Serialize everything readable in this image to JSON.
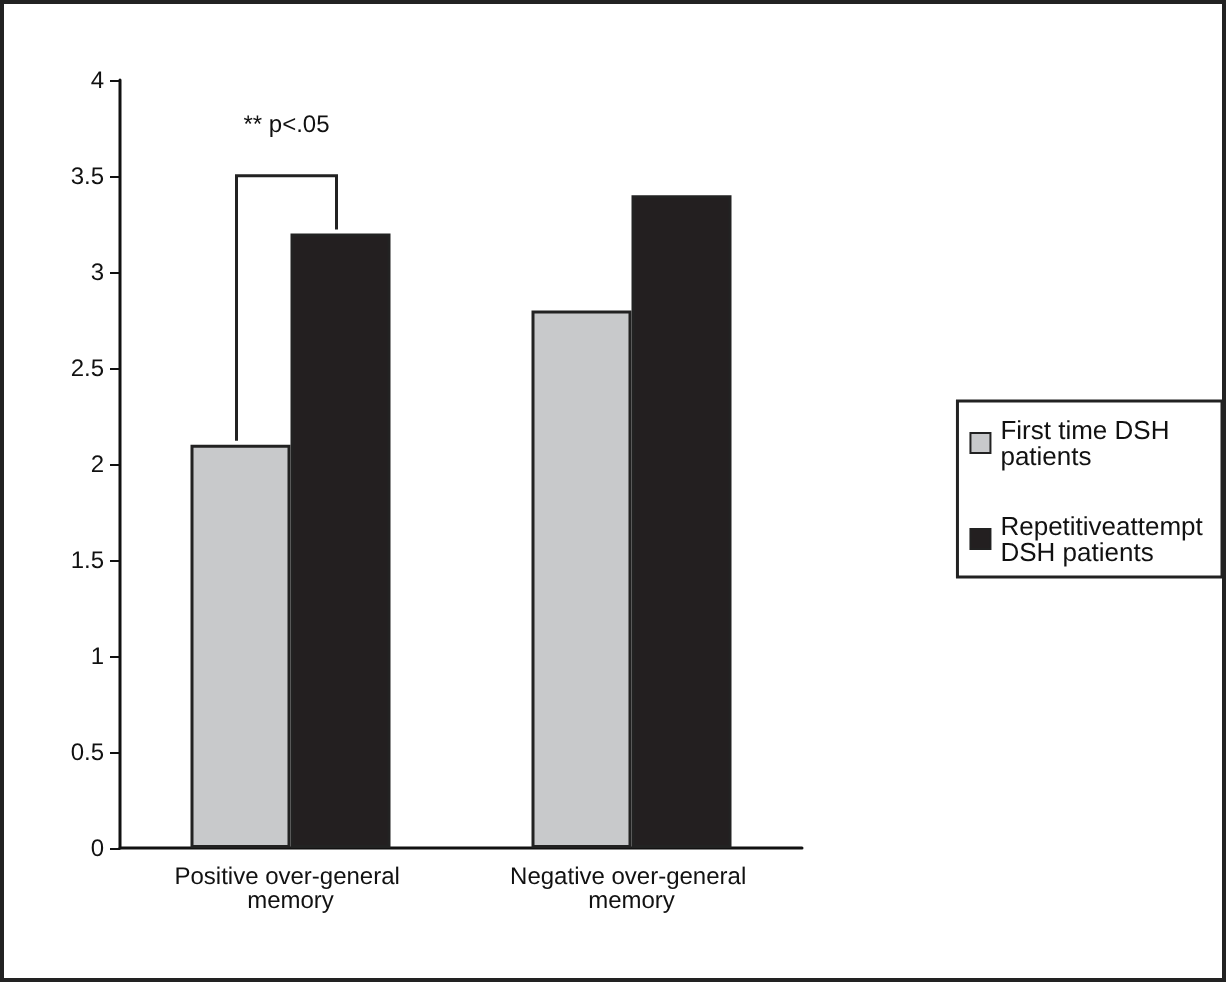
{
  "chart_data": {
    "type": "bar",
    "categories": [
      "Positive over-general memory",
      "Negative over-general memory"
    ],
    "series": [
      {
        "name": "First time DSH patients",
        "color": "#c8c9cb",
        "values": [
          2.1,
          2.8
        ]
      },
      {
        "name": "Repetitiveattempt DSH patients",
        "color": "#231f20",
        "values": [
          3.2,
          3.4
        ]
      }
    ],
    "ylim": [
      0,
      4
    ],
    "yticks": [
      0,
      0.5,
      1,
      1.5,
      2,
      2.5,
      3,
      3.5,
      4
    ],
    "grid": false,
    "legend": "right",
    "annotations": [
      "** p<.05"
    ]
  }
}
